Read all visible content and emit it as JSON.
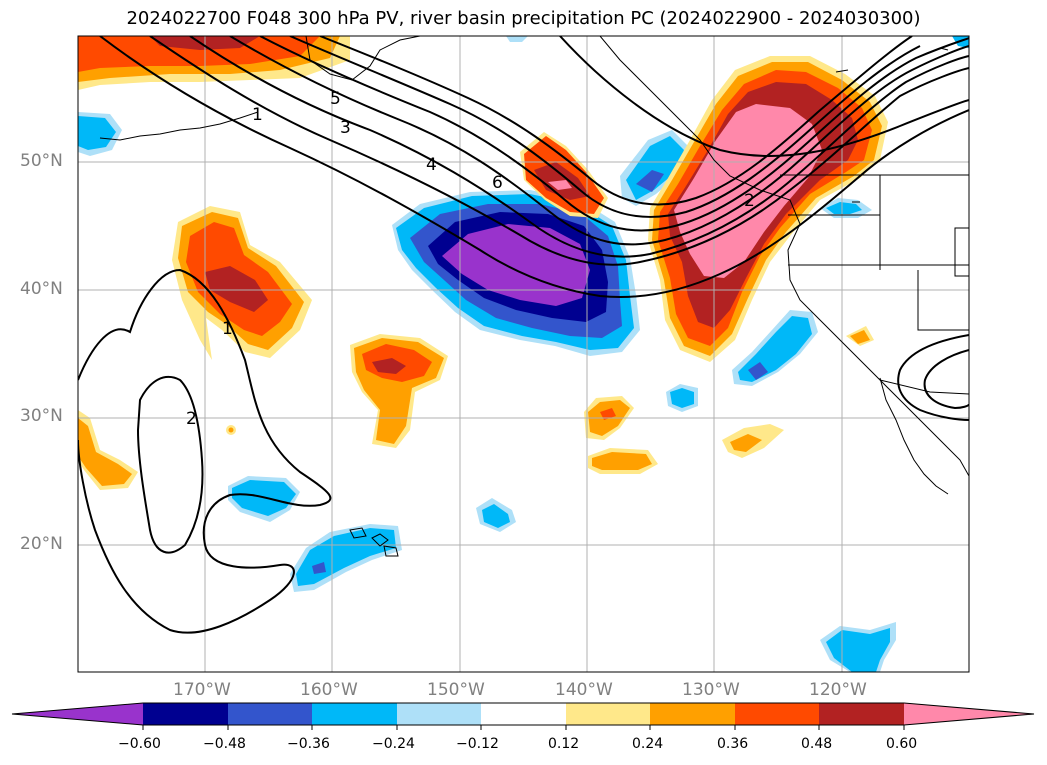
{
  "title": "2024022700 F048 300 hPa PV, river basin precipitation PC (2024022900 - 2024030300)",
  "lat_labels": [
    "50°N",
    "40°N",
    "30°N",
    "20°N"
  ],
  "lon_labels": [
    "170°W",
    "160°W",
    "150°W",
    "140°W",
    "130°W",
    "120°W"
  ],
  "pv_contour_labels": [
    "1",
    "2",
    "3",
    "4",
    "5",
    "6",
    "1",
    "2"
  ],
  "colorbar": {
    "tick_labels": [
      "−0.60",
      "−0.48",
      "−0.36",
      "−0.24",
      "−0.12",
      "0.12",
      "0.24",
      "0.36",
      "0.48",
      "0.60"
    ],
    "colors": [
      "#9933cc",
      "#000090",
      "#3355cc",
      "#00b8f8",
      "#aee0f8",
      "#ffffff",
      "#ffe88a",
      "#ffa000",
      "#ff4a00",
      "#b22222",
      "#ff88aa",
      "#ff88aa"
    ],
    "extend": "both"
  },
  "colors": {
    "purple": "#9933cc",
    "navy": "#000090",
    "blue": "#3355cc",
    "sky": "#00b8f8",
    "lightblue": "#aee0f8",
    "yellow": "#ffe88a",
    "orange": "#ffa000",
    "redorange": "#ff4a00",
    "darkred": "#b22222",
    "pink": "#ff88aa",
    "grid": "#b0b0b0",
    "label_gray": "#808080"
  }
}
